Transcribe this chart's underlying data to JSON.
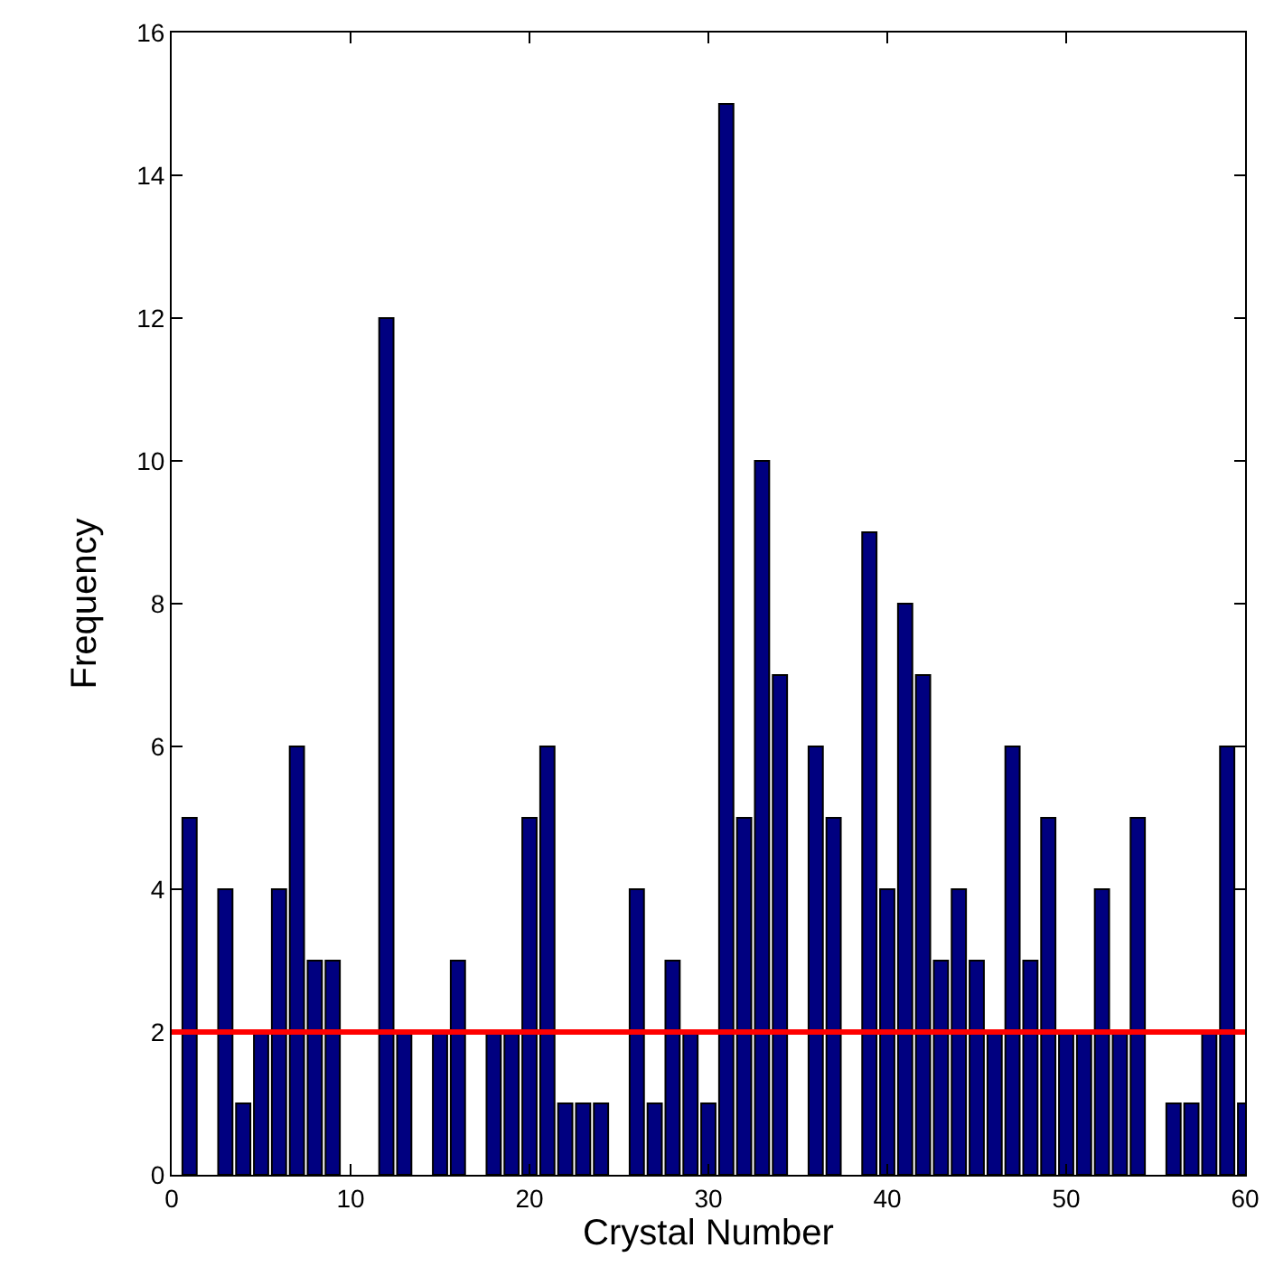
{
  "chart_data": {
    "type": "bar",
    "xlabel": "Crystal Number",
    "ylabel": "Frequency",
    "x": [
      1,
      3,
      4,
      5,
      6,
      7,
      8,
      9,
      12,
      13,
      15,
      16,
      18,
      19,
      20,
      21,
      22,
      23,
      24,
      26,
      27,
      28,
      29,
      30,
      31,
      32,
      33,
      34,
      36,
      37,
      39,
      40,
      41,
      42,
      43,
      44,
      45,
      46,
      47,
      48,
      49,
      50,
      51,
      52,
      53,
      54,
      56,
      57,
      58,
      59,
      60
    ],
    "values": [
      5,
      4,
      1,
      2,
      4,
      6,
      3,
      3,
      12,
      2,
      2,
      3,
      2,
      2,
      5,
      6,
      1,
      1,
      1,
      4,
      1,
      3,
      2,
      1,
      15,
      5,
      10,
      7,
      6,
      5,
      9,
      4,
      8,
      7,
      3,
      4,
      3,
      2,
      6,
      3,
      5,
      2,
      2,
      4,
      2,
      5,
      1,
      1,
      2,
      6,
      1
    ],
    "color": "#000080",
    "xlim": [
      0,
      60
    ],
    "xticks": [
      0,
      10,
      20,
      30,
      40,
      50,
      60
    ],
    "ylim": [
      0,
      16
    ],
    "yticks": [
      0,
      2,
      4,
      6,
      8,
      10,
      12,
      14,
      16
    ],
    "legend": false,
    "ref_lines": [
      {
        "axis": "y",
        "value": 2,
        "label": null,
        "color": "#ff0000",
        "line_style": "solid"
      }
    ]
  }
}
